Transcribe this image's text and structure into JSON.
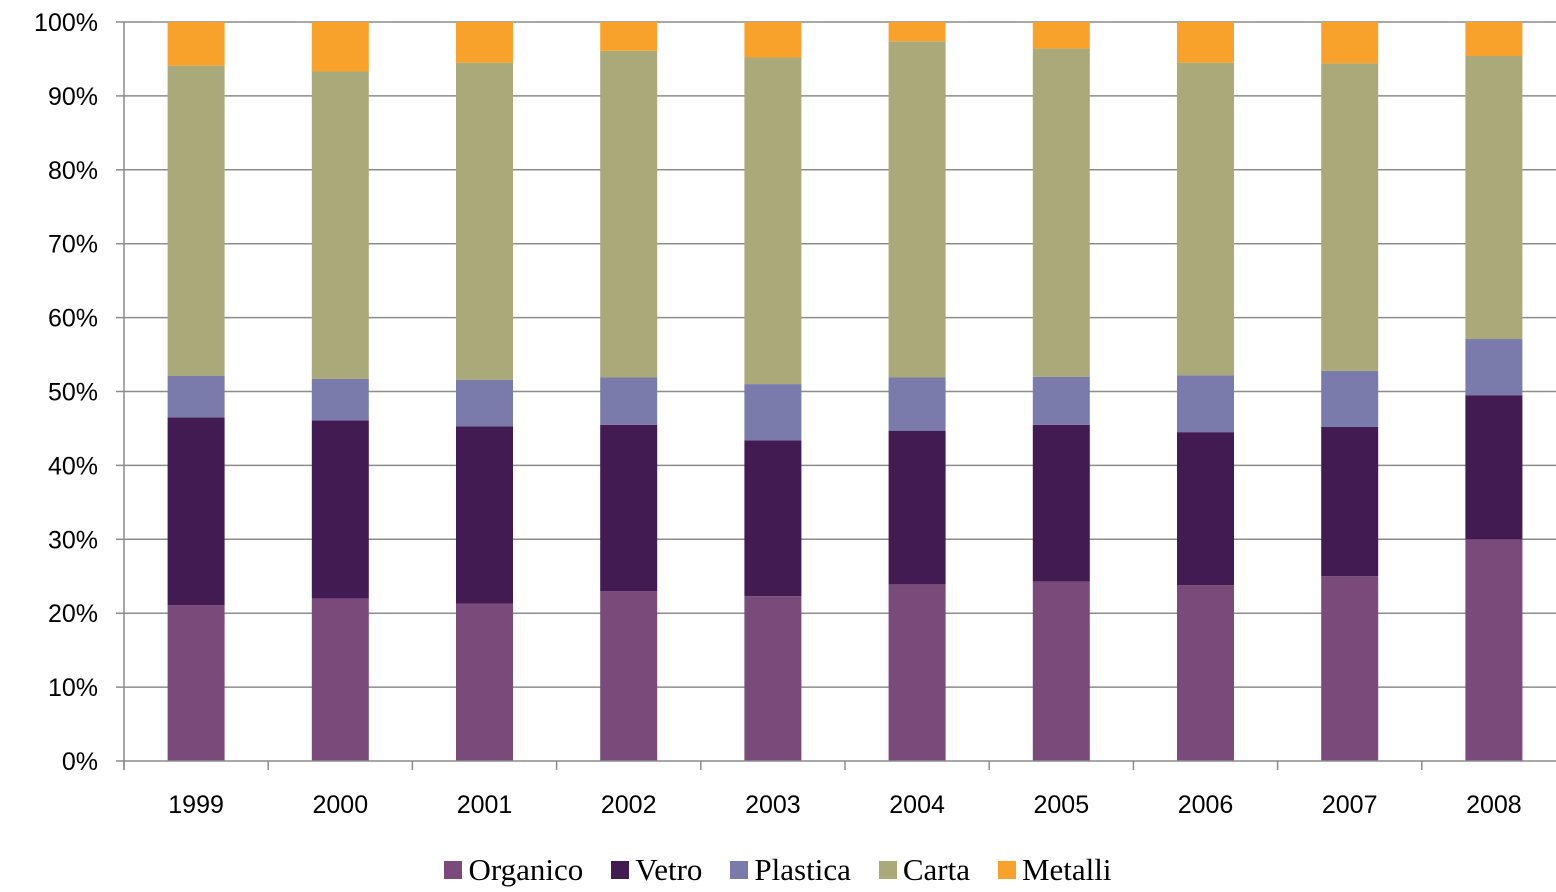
{
  "chart_data": {
    "type": "bar",
    "stacked": true,
    "percent_stacked": true,
    "categories": [
      "1999",
      "2000",
      "2001",
      "2002",
      "2003",
      "2004",
      "2005",
      "2006",
      "2007",
      "2008"
    ],
    "series": [
      {
        "name": "Organico",
        "color": "#7A4A7A",
        "values": [
          21.1,
          22.0,
          21.3,
          23.0,
          22.3,
          23.9,
          24.3,
          23.8,
          25.0,
          30.0
        ]
      },
      {
        "name": "Vetro",
        "color": "#421B52",
        "values": [
          25.4,
          24.1,
          24.0,
          22.5,
          21.1,
          20.8,
          21.2,
          20.7,
          20.2,
          19.5
        ]
      },
      {
        "name": "Plastica",
        "color": "#7B7BAB",
        "values": [
          5.6,
          5.6,
          6.3,
          6.4,
          7.6,
          7.2,
          6.5,
          7.7,
          7.6,
          7.6
        ]
      },
      {
        "name": "Carta",
        "color": "#A9A979",
        "values": [
          42.0,
          41.6,
          42.9,
          44.2,
          44.2,
          45.5,
          44.4,
          42.3,
          41.6,
          38.3
        ]
      },
      {
        "name": "Metalli",
        "color": "#F9A22B",
        "values": [
          5.9,
          6.7,
          5.5,
          3.9,
          4.8,
          2.6,
          3.6,
          5.5,
          5.6,
          4.6
        ]
      }
    ],
    "y_tick_labels": [
      "0%",
      "10%",
      "20%",
      "30%",
      "40%",
      "50%",
      "60%",
      "70%",
      "80%",
      "90%",
      "100%"
    ],
    "ylim": [
      0,
      100
    ],
    "grid": true,
    "legend_position": "bottom"
  }
}
